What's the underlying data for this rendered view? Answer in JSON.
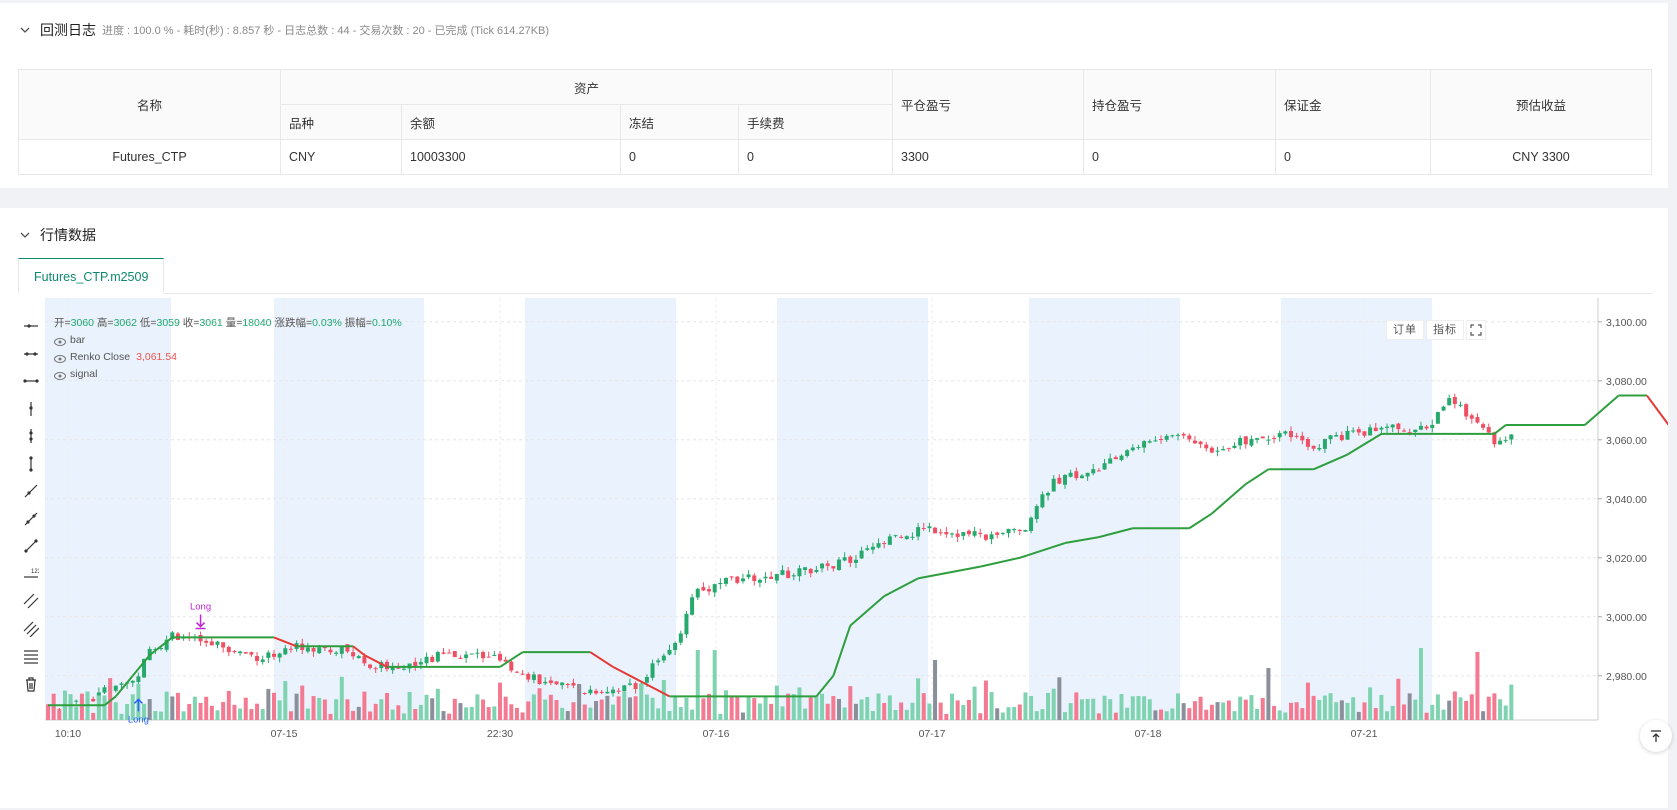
{
  "log": {
    "title": "回测日志",
    "summary": "进度 : 100.0 % - 耗时(秒) : 8.857 秒 - 日志总数 : 44 - 交易次数 : 20 - 已完成 (Tick 614.27KB)"
  },
  "assets_table": {
    "headers": {
      "name": "名称",
      "assets": "资产",
      "symbol": "品种",
      "balance": "余额",
      "frozen": "冻结",
      "fee": "手续费",
      "close_pnl": "平仓盈亏",
      "hold_pnl": "持仓盈亏",
      "margin": "保证金",
      "est_profit": "预估收益"
    },
    "row": {
      "name": "Futures_CTP",
      "symbol": "CNY",
      "balance": "10003300",
      "frozen": "0",
      "fee": "0",
      "close_pnl": "3300",
      "hold_pnl": "0",
      "margin": "0",
      "est_profit": "CNY 3300"
    }
  },
  "market": {
    "title": "行情数据",
    "tab": "Futures_CTP.m2509",
    "buttons": {
      "orders": "订单",
      "indicators": "指标"
    }
  },
  "legend": {
    "ohlc": [
      {
        "k": "开",
        "v": "3060"
      },
      {
        "k": "高",
        "v": "3062"
      },
      {
        "k": "低",
        "v": "3059"
      },
      {
        "k": "收",
        "v": "3061"
      },
      {
        "k": "量",
        "v": "18040"
      },
      {
        "k": "涨跌幅",
        "v": "0.03%"
      },
      {
        "k": "振幅",
        "v": "0.10%"
      }
    ],
    "series": [
      {
        "name": "bar"
      },
      {
        "name": "Renko Close",
        "value": "3,061.54"
      },
      {
        "name": "signal"
      }
    ]
  },
  "colors": {
    "up": "#26a96c",
    "down": "#ef4f63",
    "renko_up": "#2e9e3e",
    "renko_down": "#e53935",
    "session": "#eaf3fd",
    "accent": "#0d8a6e",
    "signal_long": "#c026d3",
    "signal_buy": "#2962ff"
  },
  "chart_data": {
    "type": "candlestick",
    "title": "",
    "y_ticks": [
      "3,100.00",
      "3,080.00",
      "3,060.00",
      "3,040.00",
      "3,020.00",
      "3,000.00",
      "2,980.00"
    ],
    "ylim": [
      2965,
      3104
    ],
    "x_ticks": [
      "10:10",
      "07-15",
      "22:30",
      "07-16",
      "07-17",
      "07-18",
      "07-21"
    ],
    "bar_count": 200,
    "close_anchors": [
      [
        0,
        2970
      ],
      [
        6,
        2970
      ],
      [
        10,
        2975
      ],
      [
        15,
        2978
      ],
      [
        18,
        2988
      ],
      [
        22,
        2994
      ],
      [
        30,
        2990
      ],
      [
        38,
        2986
      ],
      [
        44,
        2990
      ],
      [
        52,
        2989
      ],
      [
        57,
        2984
      ],
      [
        60,
        2983
      ],
      [
        66,
        2985
      ],
      [
        70,
        2987
      ],
      [
        78,
        2987
      ],
      [
        82,
        2983
      ],
      [
        88,
        2977
      ],
      [
        95,
        2975
      ],
      [
        104,
        2976
      ],
      [
        112,
        2995
      ],
      [
        114,
        3007
      ],
      [
        120,
        3013
      ],
      [
        126,
        3013
      ],
      [
        132,
        3015
      ],
      [
        138,
        3017
      ],
      [
        145,
        3022
      ],
      [
        150,
        3027
      ],
      [
        156,
        3030
      ],
      [
        162,
        3028
      ],
      [
        168,
        3027
      ],
      [
        173,
        3031
      ],
      [
        178,
        3046
      ],
      [
        186,
        3050
      ],
      [
        193,
        3058
      ],
      [
        200,
        3062
      ],
      [
        206,
        3057
      ],
      [
        212,
        3060
      ],
      [
        218,
        3062
      ],
      [
        224,
        3058
      ],
      [
        230,
        3062
      ],
      [
        238,
        3064
      ],
      [
        244,
        3063
      ],
      [
        248,
        3075
      ],
      [
        252,
        3066
      ],
      [
        256,
        3060
      ],
      [
        260,
        3061
      ]
    ],
    "renko_close": [
      [
        0,
        2970
      ],
      [
        10,
        2970
      ],
      [
        12,
        2973
      ],
      [
        15,
        2980
      ],
      [
        18,
        2987
      ],
      [
        22,
        2993
      ],
      [
        40,
        2993
      ],
      [
        44,
        2990
      ],
      [
        54,
        2990
      ],
      [
        56,
        2987
      ],
      [
        60,
        2983
      ],
      [
        80,
        2983
      ],
      [
        84,
        2988
      ],
      [
        96,
        2988
      ],
      [
        100,
        2983
      ],
      [
        110,
        2973
      ],
      [
        136,
        2973
      ],
      [
        139,
        2980
      ],
      [
        142,
        2997
      ],
      [
        148,
        3007
      ],
      [
        154,
        3013
      ],
      [
        165,
        3017
      ],
      [
        172,
        3020
      ],
      [
        180,
        3025
      ],
      [
        186,
        3027
      ],
      [
        192,
        3030
      ],
      [
        202,
        3030
      ],
      [
        206,
        3035
      ],
      [
        212,
        3045
      ],
      [
        216,
        3050
      ],
      [
        224,
        3050
      ],
      [
        230,
        3055
      ],
      [
        236,
        3062
      ],
      [
        256,
        3062
      ],
      [
        258,
        3065
      ],
      [
        272,
        3065
      ],
      [
        275,
        3070
      ],
      [
        278,
        3075
      ],
      [
        283,
        3075
      ],
      [
        288,
        3062
      ],
      [
        292,
        3062
      ]
    ],
    "volume_note": "volume bars colored by candle direction",
    "signals": [
      {
        "label": "Long",
        "type": "entry-arrow-down",
        "x_index": 27,
        "price": 2996
      },
      {
        "label": "Long",
        "type": "buy-arrow-up",
        "x_index": 16,
        "price": 2972
      }
    ],
    "last_price": "3,061.54",
    "grid": true
  }
}
